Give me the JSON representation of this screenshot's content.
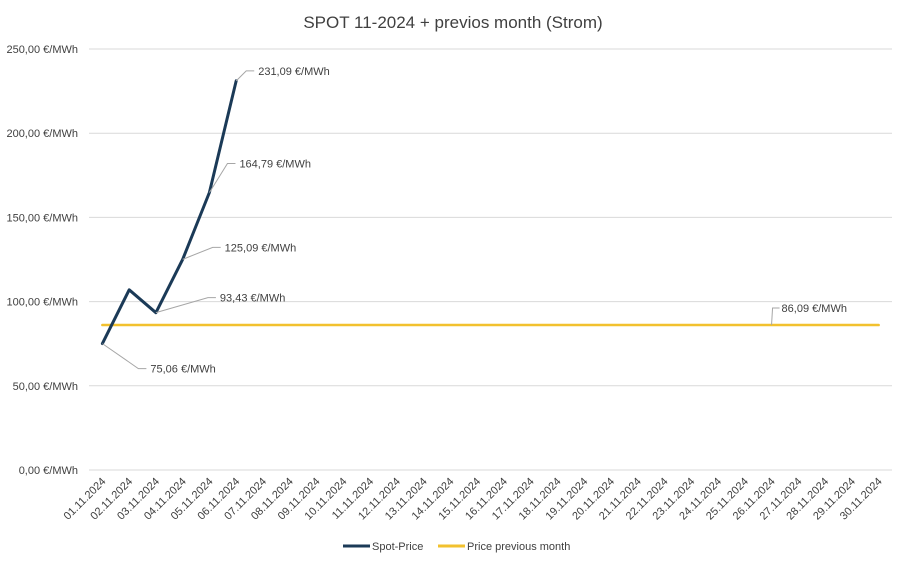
{
  "chart_data": {
    "type": "line",
    "title": "SPOT 11-2024 + previos month (Strom)",
    "xlabel": "",
    "ylabel": "",
    "ylim": [
      0,
      250
    ],
    "yticks": [
      0,
      50,
      100,
      150,
      200,
      250
    ],
    "ytick_labels": [
      "0,00 €/MWh",
      "50,00 €/MWh",
      "100,00 €/MWh",
      "150,00 €/MWh",
      "200,00 €/MWh",
      "250,00 €/MWh"
    ],
    "grid": true,
    "legend_position": "bottom",
    "categories": [
      "01.11.2024",
      "02.11.2024",
      "03.11.2024",
      "04.11.2024",
      "05.11.2024",
      "06.11.2024",
      "07.11.2024",
      "08.11.2024",
      "09.11.2024",
      "10.11.2024",
      "11.11.2024",
      "12.11.2024",
      "13.11.2024",
      "14.11.2024",
      "15.11.2024",
      "16.11.2024",
      "17.11.2024",
      "18.11.2024",
      "19.11.2024",
      "20.11.2024",
      "21.11.2024",
      "22.11.2024",
      "23.11.2024",
      "24.11.2024",
      "25.11.2024",
      "26.11.2024",
      "27.11.2024",
      "28.11.2024",
      "29.11.2024",
      "30.11.2024"
    ],
    "series": [
      {
        "name": "Spot-Price",
        "color": "#1b3a57",
        "values": [
          75.06,
          107.0,
          93.43,
          125.09,
          164.79,
          231.09,
          null,
          null,
          null,
          null,
          null,
          null,
          null,
          null,
          null,
          null,
          null,
          null,
          null,
          null,
          null,
          null,
          null,
          null,
          null,
          null,
          null,
          null,
          null,
          null
        ]
      },
      {
        "name": "Price previous month",
        "color": "#f2c12e",
        "values": [
          86.09,
          86.09,
          86.09,
          86.09,
          86.09,
          86.09,
          86.09,
          86.09,
          86.09,
          86.09,
          86.09,
          86.09,
          86.09,
          86.09,
          86.09,
          86.09,
          86.09,
          86.09,
          86.09,
          86.09,
          86.09,
          86.09,
          86.09,
          86.09,
          86.09,
          86.09,
          86.09,
          86.09,
          86.09,
          86.09
        ]
      }
    ],
    "annotations": [
      {
        "series": 0,
        "index": 0,
        "text": "75,06 €/MWh"
      },
      {
        "series": 0,
        "index": 2,
        "text": "93,43 €/MWh"
      },
      {
        "series": 0,
        "index": 3,
        "text": "125,09 €/MWh"
      },
      {
        "series": 0,
        "index": 4,
        "text": "164,79 €/MWh"
      },
      {
        "series": 0,
        "index": 5,
        "text": "231,09 €/MWh"
      },
      {
        "series": 1,
        "index": 25,
        "text": "86,09 €/MWh"
      }
    ]
  }
}
